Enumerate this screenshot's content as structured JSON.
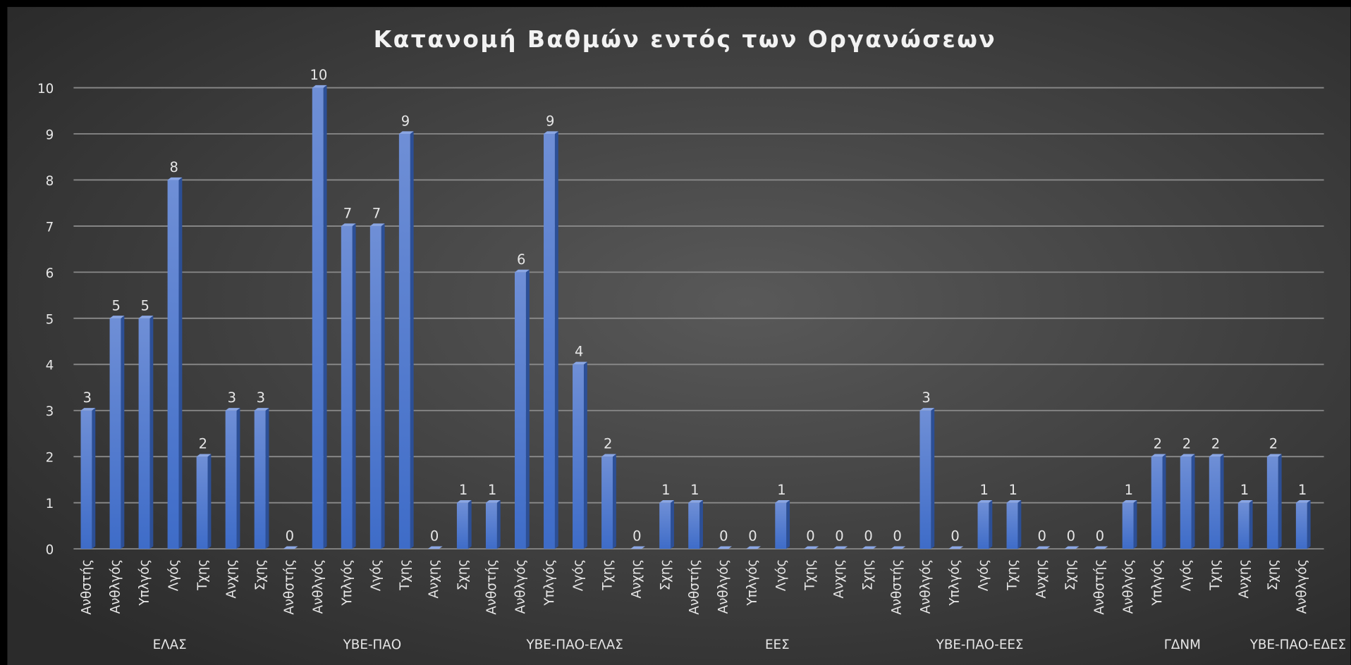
{
  "chart_data": {
    "type": "bar",
    "title": "Κατανομή Βαθμών εντός των Οργανώσεων",
    "color": "#4472c4",
    "grid": true,
    "ylim": [
      0,
      10
    ],
    "yticks": [
      0,
      1,
      2,
      3,
      4,
      5,
      6,
      7,
      8,
      9,
      10
    ],
    "groups": [
      {
        "name": "ΕΛΑΣ",
        "categories": [
          "Ανθστής",
          "Ανθλγός",
          "Υπλγός",
          "Λγός",
          "Τχης",
          "Ανχης",
          "Σχης"
        ],
        "values": [
          3,
          5,
          5,
          8,
          2,
          3,
          3
        ]
      },
      {
        "name": "ΥΒΕ-ΠΑΟ",
        "categories": [
          "Ανθστής",
          "Ανθλγός",
          "Υπλγός",
          "Λγός",
          "Τχης",
          "Ανχης",
          "Σχης"
        ],
        "values": [
          0,
          10,
          7,
          7,
          9,
          0,
          1
        ]
      },
      {
        "name": "ΥΒΕ-ΠΑΟ-ΕΛΑΣ",
        "categories": [
          "Ανθστής",
          "Ανθλγός",
          "Υπλγός",
          "Λγός",
          "Τχης",
          "Ανχης",
          "Σχης"
        ],
        "values": [
          1,
          6,
          9,
          4,
          2,
          0,
          1
        ]
      },
      {
        "name": "ΕΕΣ",
        "categories": [
          "Ανθστής",
          "Ανθλγός",
          "Υπλγός",
          "Λγός",
          "Τχης",
          "Ανχης",
          "Σχης"
        ],
        "values": [
          1,
          0,
          0,
          1,
          0,
          0,
          0
        ]
      },
      {
        "name": "ΥΒΕ-ΠΑΟ-ΕΕΣ",
        "categories": [
          "Ανθστής",
          "Ανθλγός",
          "Υπλγός",
          "Λγός",
          "Τχης",
          "Ανχης",
          "Σχης"
        ],
        "values": [
          0,
          3,
          0,
          1,
          1,
          0,
          0
        ]
      },
      {
        "name": "ΓΔΝΜ",
        "categories": [
          "Ανθστής",
          "Ανθλγός",
          "Υπλγός",
          "Λγός",
          "Τχης",
          "Ανχης",
          "Σχης"
        ],
        "values": [
          0,
          1,
          2,
          2,
          2,
          1,
          2
        ]
      },
      {
        "name": "ΥΒΕ-ΠΑΟ-ΕΔΕΣ",
        "categories": [
          "Ανθλγός"
        ],
        "values": [
          1
        ]
      }
    ]
  }
}
